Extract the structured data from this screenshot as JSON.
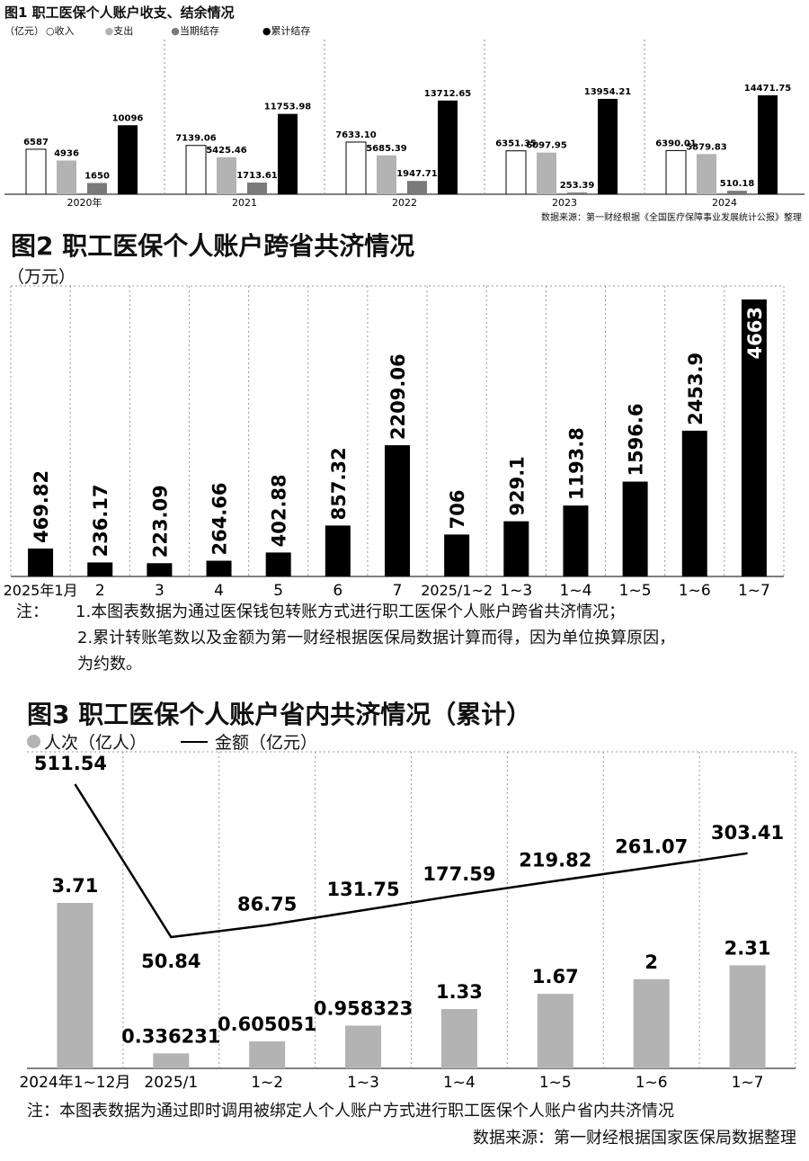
{
  "fig1": {
    "title": "图1 职工医保个人账户收支、结余情况",
    "unit": "（亿元）",
    "legend": [
      {
        "label": "收入",
        "marker": "○"
      },
      {
        "label": "支出",
        "marker": "●"
      },
      {
        "label": "当期结存",
        "marker": "●"
      },
      {
        "label": "累计结存",
        "marker": "●"
      }
    ],
    "source": "数据来源：第一财经根据《全国医疗保障事业发展统计公报》整理"
  },
  "fig2": {
    "title": "图2 职工医保个人账户跨省共济情况",
    "unit": "（万元）",
    "notes": [
      "注：",
      "1.本图表数据为通过医保钱包转账方式进行职工医保个人账户跨省共济情况；",
      "2.累计转账笔数以及金额为第一财经根据医保局数据计算而得，因为单位换算原因，",
      "为约数。"
    ]
  },
  "fig3": {
    "title": "图3 职工医保个人账户省内共济情况（累计）",
    "legend_people": "人次（亿人）",
    "legend_amount": "金额（亿元）",
    "note": "注：本图表数据为通过即时调用被绑定人个人账户方式进行职工医保个人账户省内共济情况",
    "source": "数据来源：第一财经根据国家医保局数据整理"
  },
  "chart_data": [
    {
      "type": "bar",
      "title": "图1 职工医保个人账户收支、结余情况",
      "ylabel": "亿元",
      "categories": [
        "2020年",
        "2021",
        "2022",
        "2023",
        "2024"
      ],
      "colors": {
        "收入": "#ffffff",
        "支出": "#b3b3b3",
        "当期结存": "#7a7a7a",
        "累计结存": "#000000"
      },
      "series": [
        {
          "name": "收入",
          "values": [
            "6587",
            "7139.06",
            "7633.10",
            "6351.35",
            "6390.01"
          ]
        },
        {
          "name": "支出",
          "values": [
            "4936",
            "5425.46",
            "5685.39",
            "6097.95",
            "5879.83"
          ]
        },
        {
          "name": "当期结存",
          "values": [
            "1650",
            "1713.61",
            "1947.71",
            "253.39",
            "510.18"
          ]
        },
        {
          "name": "累计结存",
          "values": [
            "10096",
            "11753.98",
            "13712.65",
            "13954.21",
            "14471.75"
          ]
        }
      ]
    },
    {
      "type": "bar",
      "title": "图2 职工医保个人账户跨省共济情况",
      "ylabel": "万元",
      "categories": [
        "2025年1月",
        "2",
        "3",
        "4",
        "5",
        "6",
        "7",
        "2025/1~2",
        "1~3",
        "1~4",
        "1~5",
        "1~6",
        "1~7"
      ],
      "series": [
        {
          "values": [
            "469.82",
            "236.17",
            "223.09",
            "264.66",
            "402.88",
            "857.32",
            "2209.06",
            "706",
            "929.1",
            "1193.8",
            "1596.6",
            "2453.9",
            "4663"
          ]
        }
      ]
    },
    {
      "type": "bar",
      "title": "图3 职工医保个人账户省内共济情况（累计）",
      "categories": [
        "2024年1~12月",
        "2025/1",
        "1~2",
        "1~3",
        "1~4",
        "1~5",
        "1~6",
        "1~7"
      ],
      "series": [
        {
          "name": "人次（亿人）",
          "type": "bar",
          "values": [
            "3.71",
            "0.336231",
            "0.605051",
            "0.958323",
            "1.33",
            "1.67",
            "2",
            "2.31"
          ]
        },
        {
          "name": "金额（亿元）",
          "type": "line",
          "values": [
            "511.54",
            "50.84",
            "86.75",
            "131.75",
            "177.59",
            "219.82",
            "261.07",
            "303.41"
          ]
        }
      ]
    }
  ]
}
